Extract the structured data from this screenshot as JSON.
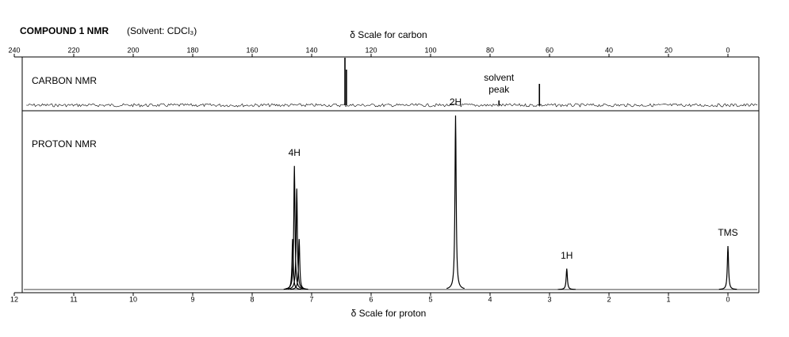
{
  "chart_data": [
    {
      "type": "stick",
      "title": "COMPOUND 1 NMR",
      "subtitle": "(Solvent: CDCl₃)",
      "name": "CARBON NMR",
      "xlabel": "δ Scale for carbon",
      "x": [
        128.8,
        128.3,
        77.0,
        63.4
      ],
      "values": [
        100,
        75,
        10,
        45
      ],
      "labels": [
        null,
        null,
        "solvent peak",
        null
      ],
      "xlim": [
        240,
        0
      ],
      "xticks": [
        240,
        220,
        200,
        180,
        160,
        140,
        120,
        100,
        80,
        60,
        40,
        20,
        0
      ],
      "ylim": [
        0,
        100
      ],
      "color": "#000000"
    },
    {
      "type": "peak",
      "name": "PROTON NMR",
      "xlabel": "δ Scale for proton",
      "x": [
        7.32,
        7.29,
        7.25,
        7.21,
        4.58,
        2.71,
        0.0
      ],
      "values": [
        29,
        71,
        58,
        29,
        100,
        12,
        25
      ],
      "labels": [
        null,
        "4H",
        null,
        null,
        "2H",
        "1H",
        "TMS"
      ],
      "xlim": [
        12,
        0
      ],
      "xticks": [
        12,
        11,
        10,
        9,
        8,
        7,
        6,
        5,
        4,
        3,
        2,
        1,
        0
      ],
      "ylim": [
        0,
        100
      ],
      "color": "#000000"
    }
  ]
}
